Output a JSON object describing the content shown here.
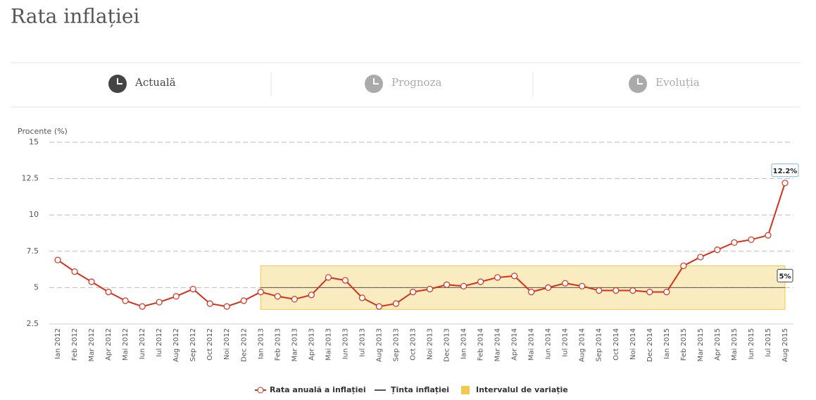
{
  "header": {
    "title": "Rata inflației"
  },
  "tabs": [
    "Actuală",
    "Prognoza",
    "Evoluția"
  ],
  "chart_data": {
    "type": "line",
    "y_label": "Procente (%)",
    "categories": [
      "Ian 2012",
      "Feb 2012",
      "Mar 2012",
      "Apr 2012",
      "Mai 2012",
      "Iun 2012",
      "Iul 2012",
      "Aug 2012",
      "Sep 2012",
      "Oct 2012",
      "Noi 2012",
      "Dec 2012",
      "Ian 2013",
      "Feb 2013",
      "Mar 2013",
      "Apr 2013",
      "Mai 2013",
      "Iun 2013",
      "Iul 2013",
      "Aug 2013",
      "Sep 2013",
      "Oct 2013",
      "Noi 2013",
      "Dec 2013",
      "Ian 2014",
      "Feb 2014",
      "Mar 2014",
      "Apr 2014",
      "Mai 2014",
      "Iun 2014",
      "Iul 2014",
      "Aug 2014",
      "Sep 2014",
      "Oct 2014",
      "Noi 2014",
      "Dec 2014",
      "Ian 2015",
      "Feb 2015",
      "Mar 2015",
      "Apr 2015",
      "Mai 2015",
      "Iun 2015",
      "Iul 2015",
      "Aug 2015"
    ],
    "ylim": [
      2.5,
      15
    ],
    "yticks": [
      2.5,
      5,
      7.5,
      10,
      12.5,
      15
    ],
    "grid": true,
    "series": [
      {
        "name": "Rata anuală a inflației",
        "color": "#d6301c",
        "values": [
          6.9,
          6.1,
          5.4,
          4.7,
          4.1,
          3.7,
          4.0,
          4.4,
          4.9,
          3.9,
          3.7,
          4.1,
          4.7,
          4.4,
          4.2,
          4.5,
          5.7,
          5.5,
          4.3,
          3.7,
          3.9,
          4.7,
          4.9,
          5.2,
          5.1,
          5.4,
          5.7,
          5.8,
          4.7,
          5.0,
          5.3,
          5.1,
          4.8,
          4.8,
          4.8,
          4.7,
          4.7,
          6.5,
          7.1,
          7.6,
          8.1,
          8.3,
          8.6,
          12.2
        ],
        "value_labels": [
          null,
          null,
          null,
          null,
          null,
          null,
          null,
          null,
          null,
          null,
          null,
          null,
          null,
          null,
          null,
          null,
          null,
          null,
          null,
          null,
          null,
          null,
          null,
          null,
          null,
          null,
          null,
          null,
          null,
          null,
          null,
          null,
          null,
          null,
          null,
          null,
          null,
          null,
          null,
          null,
          null,
          null,
          null,
          "12.2%"
        ]
      },
      {
        "name": "Ținta inflației",
        "color": "#555555",
        "values": [
          null,
          null,
          null,
          null,
          null,
          null,
          null,
          null,
          null,
          null,
          null,
          null,
          5,
          5,
          5,
          5,
          5,
          5,
          5,
          5,
          5,
          5,
          5,
          5,
          5,
          5,
          5,
          5,
          5,
          5,
          5,
          5,
          5,
          5,
          5,
          5,
          5,
          5,
          5,
          5,
          5,
          5,
          5,
          5
        ],
        "value_labels": [
          null,
          null,
          null,
          null,
          null,
          null,
          null,
          null,
          null,
          null,
          null,
          null,
          null,
          null,
          null,
          null,
          null,
          null,
          null,
          null,
          null,
          null,
          null,
          null,
          null,
          null,
          null,
          null,
          null,
          null,
          null,
          null,
          null,
          null,
          null,
          null,
          null,
          null,
          null,
          null,
          null,
          null,
          null,
          "5%"
        ]
      }
    ],
    "band": {
      "name": "Intervalul de variație",
      "color": "#f2c94c",
      "low": [
        null,
        null,
        null,
        null,
        null,
        null,
        null,
        null,
        null,
        null,
        null,
        null,
        3.5,
        3.5,
        3.5,
        3.5,
        3.5,
        3.5,
        3.5,
        3.5,
        3.5,
        3.5,
        3.5,
        3.5,
        3.5,
        3.5,
        3.5,
        3.5,
        3.5,
        3.5,
        3.5,
        3.5,
        3.5,
        3.5,
        3.5,
        3.5,
        3.5,
        3.5,
        3.5,
        3.5,
        3.5,
        3.5,
        3.5,
        3.5
      ],
      "high": [
        null,
        null,
        null,
        null,
        null,
        null,
        null,
        null,
        null,
        null,
        null,
        null,
        6.5,
        6.5,
        6.5,
        6.5,
        6.5,
        6.5,
        6.5,
        6.5,
        6.5,
        6.5,
        6.5,
        6.5,
        6.5,
        6.5,
        6.5,
        6.5,
        6.5,
        6.5,
        6.5,
        6.5,
        6.5,
        6.5,
        6.5,
        6.5,
        6.5,
        6.5,
        6.5,
        6.5,
        6.5,
        6.5,
        6.5,
        6.5
      ]
    }
  }
}
